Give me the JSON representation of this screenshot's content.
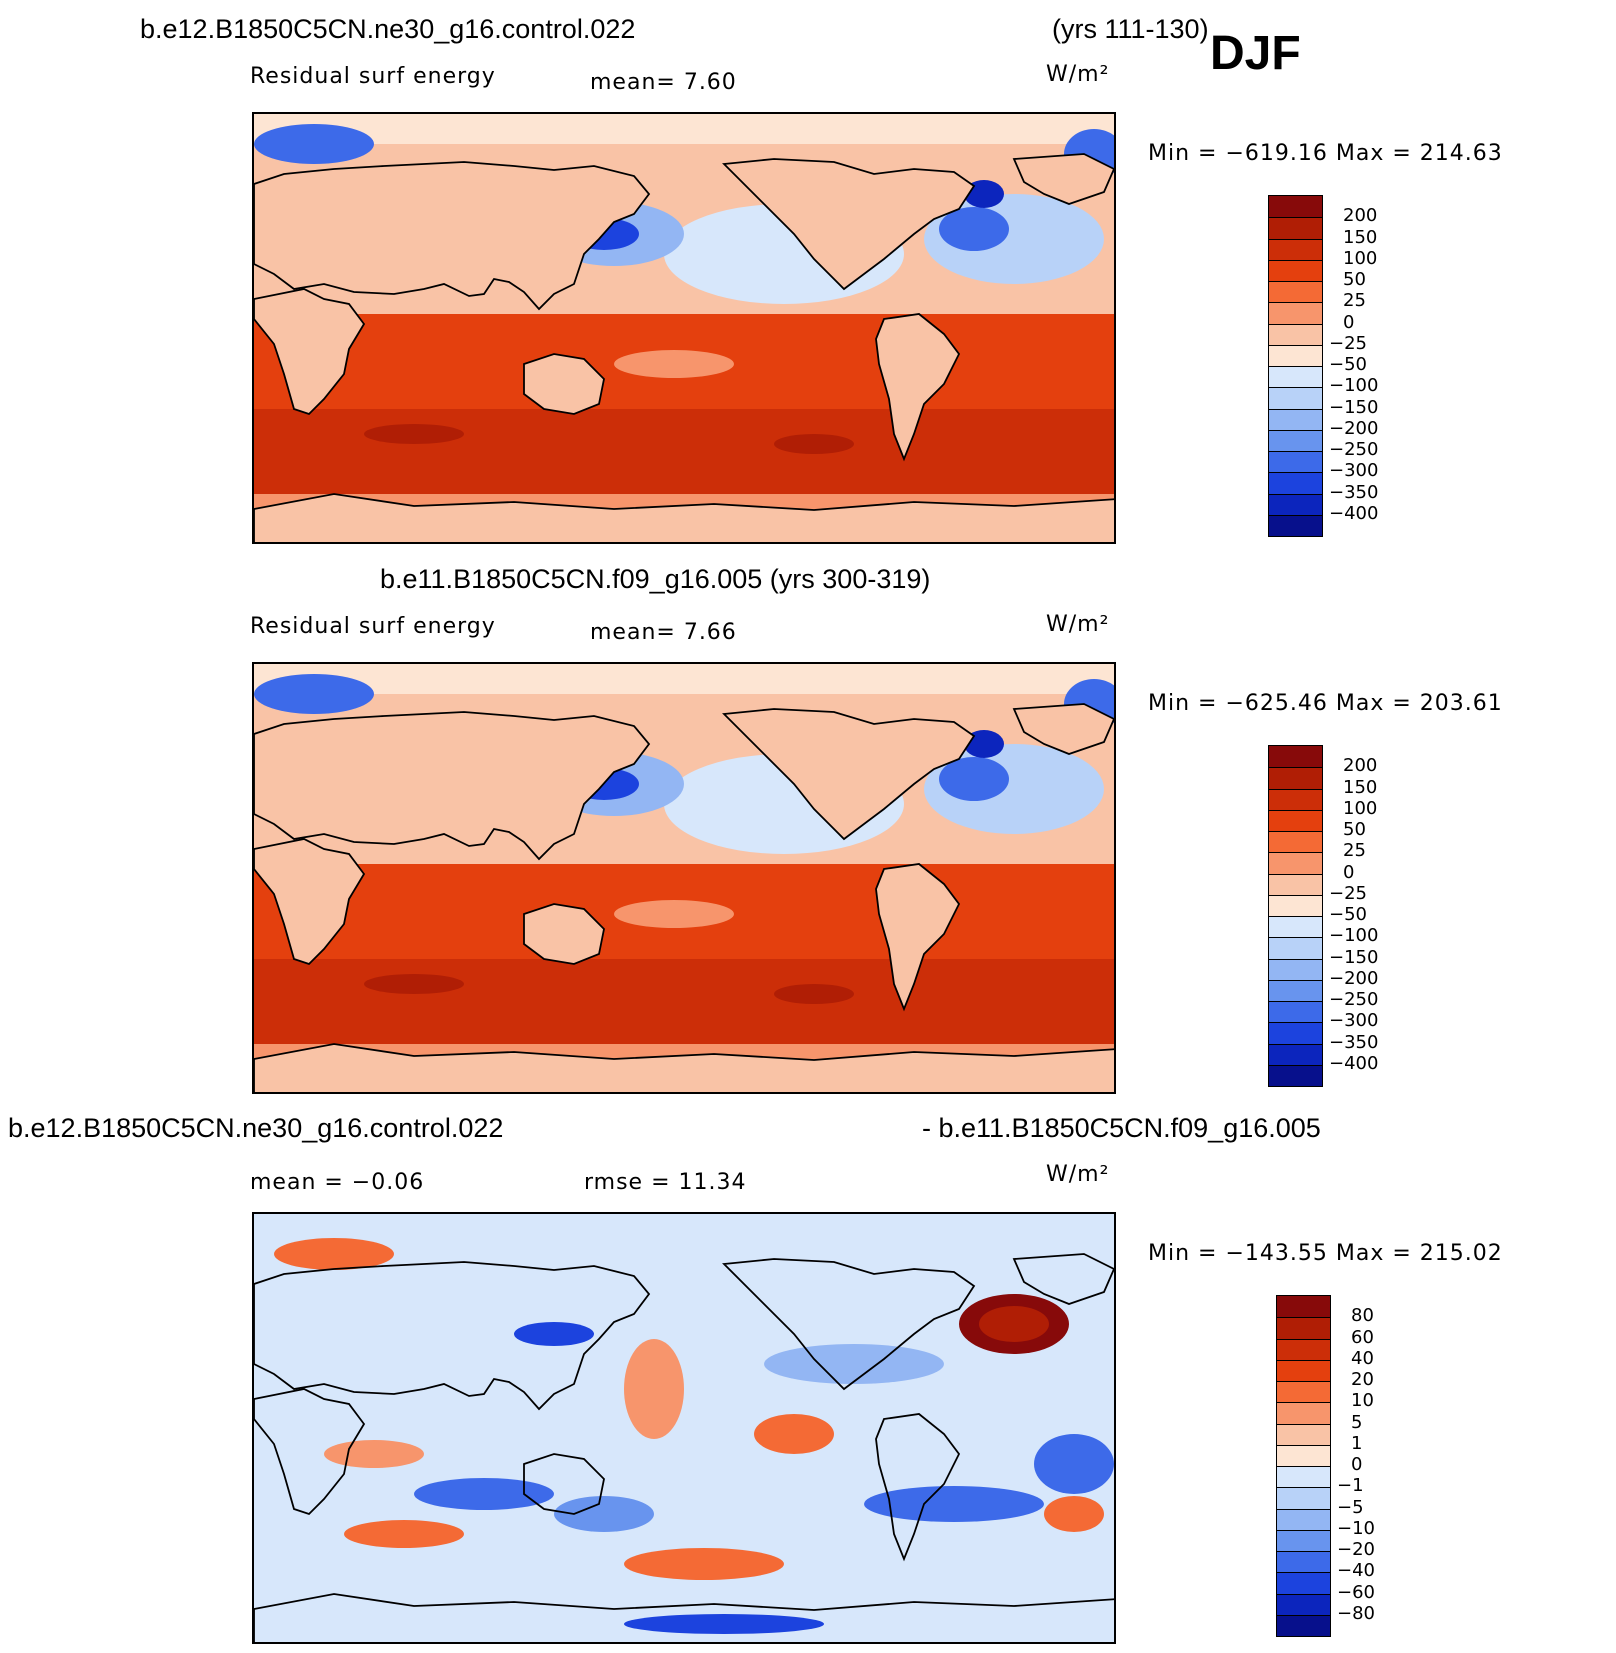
{
  "season": "DJF",
  "coastline_color": "#000000",
  "panels": [
    {
      "id": "top",
      "title_left": "b.e12.B1850C5CN.ne30_g16.control.022",
      "title_right": "(yrs 111-130)",
      "variable": "Residual surf energy",
      "stat1": "mean=    7.60",
      "stat2": "",
      "units": "W/m²",
      "minmax": "Min = −619.16 Max = 214.63",
      "palette": "abs",
      "colorbar_labels": [
        "200",
        "150",
        "100",
        "50",
        "25",
        "0",
        "−25",
        "−50",
        "−100",
        "−150",
        "−200",
        "−250",
        "−300",
        "−350",
        "−400"
      ]
    },
    {
      "id": "middle",
      "title_left": "b.e11.B1850C5CN.f09_g16.005 (yrs 300-319)",
      "title_right": "",
      "variable": "Residual surf energy",
      "stat1": "mean=    7.66",
      "stat2": "",
      "units": "W/m²",
      "minmax": "Min = −625.46 Max = 203.61",
      "palette": "abs",
      "colorbar_labels": [
        "200",
        "150",
        "100",
        "50",
        "25",
        "0",
        "−25",
        "−50",
        "−100",
        "−150",
        "−200",
        "−250",
        "−300",
        "−350",
        "−400"
      ]
    },
    {
      "id": "bottom",
      "title_left": "b.e12.B1850C5CN.ne30_g16.control.022",
      "title_right": "- b.e11.B1850C5CN.f09_g16.005",
      "variable": "",
      "stat1": "mean =   −0.06",
      "stat2": "rmse =   11.34",
      "units": "W/m²",
      "minmax": "Min = −143.55 Max = 215.02",
      "palette": "diff",
      "colorbar_labels": [
        "80",
        "60",
        "40",
        "20",
        "10",
        "5",
        "1",
        "0",
        "−1",
        "−5",
        "−10",
        "−20",
        "−40",
        "−60",
        "−80"
      ]
    }
  ],
  "palettes": {
    "abs": [
      "#870a0a",
      "#b01e05",
      "#cc2e08",
      "#e4400e",
      "#f46a35",
      "#f7956c",
      "#f9c3a6",
      "#fde5d3",
      "#d7e7fb",
      "#b8d2f8",
      "#93b6f3",
      "#6894ee",
      "#3d6ae9",
      "#1c43de",
      "#0c25bd",
      "#07108c"
    ],
    "diff": [
      "#870a0a",
      "#b01e05",
      "#cc2e08",
      "#e4400e",
      "#f46a35",
      "#f7956c",
      "#f9c3a6",
      "#fde5d3",
      "#d7e7fb",
      "#b8d2f8",
      "#93b6f3",
      "#6894ee",
      "#3d6ae9",
      "#1c43de",
      "#0c25bd",
      "#07108c"
    ]
  }
}
